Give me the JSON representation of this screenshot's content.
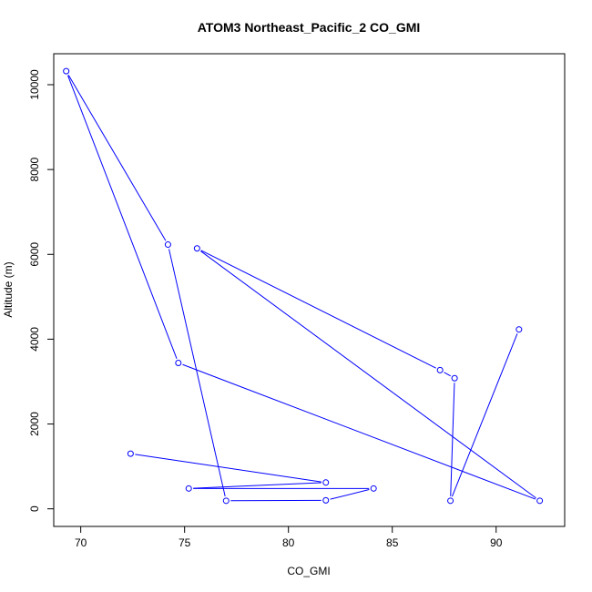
{
  "chart_data": {
    "type": "line",
    "title": "ATOM3 Northeast_Pacific_2 CO_GMI",
    "xlabel": "CO_GMI",
    "ylabel": "Altitude (m)",
    "xlim": [
      68.7,
      93.3
    ],
    "ylim": [
      -415,
      10730
    ],
    "xticks": [
      70,
      75,
      80,
      85,
      90
    ],
    "yticks": [
      0,
      2000,
      4000,
      6000,
      8000,
      10000
    ],
    "grid": false,
    "series": [
      {
        "color": "#0000ff",
        "marker": "open-circle",
        "x": [
          72.4,
          81.8,
          75.2,
          84.1,
          81.8,
          77.0,
          74.2,
          69.3,
          74.7,
          92.1,
          75.6,
          87.3,
          88.0,
          87.8,
          91.1
        ],
        "y": [
          1300,
          620,
          480,
          480,
          200,
          190,
          6230,
          10320,
          3440,
          190,
          6140,
          3270,
          3080,
          190,
          4230
        ]
      }
    ]
  }
}
